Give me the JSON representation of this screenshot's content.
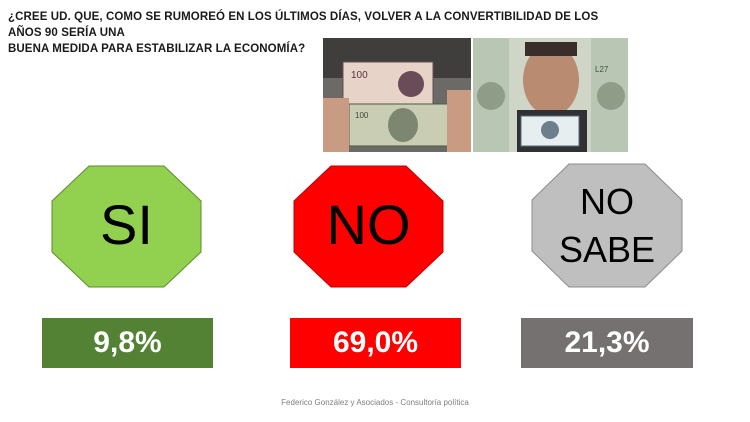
{
  "question": {
    "line1": "¿CREE UD. QUE, COMO SE RUMOREÓ EN LOS ÚLTIMOS DÍAS, VOLVER A LA CONVERTIBILIDAD DE LOS AÑOS 90 SERÍA UNA",
    "line2": "BUENA MEDIDA PARA ESTABILIZAR LA ECONOMÍA?"
  },
  "options": [
    {
      "label": "SI",
      "value": "9,8%",
      "shape_color": "#92d050",
      "bar_color": "#548235"
    },
    {
      "label": "NO",
      "value": "69,0%",
      "shape_color": "#ff0000",
      "bar_color": "#ff0000"
    },
    {
      "label_line1": "NO",
      "label_line2": "SABE",
      "value": "21,3%",
      "shape_color": "#bfbfbf",
      "bar_color": "#767171"
    }
  ],
  "footer": "Federico González y Asociados - Consultoría política"
}
